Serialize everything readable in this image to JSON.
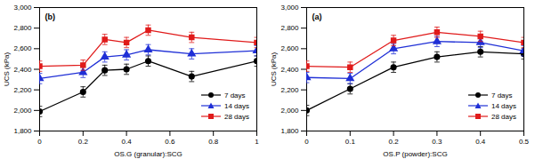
{
  "chart_data": [
    {
      "type": "line",
      "title": "(b)",
      "x_label": "OS.G (granular):SCG",
      "y_label": "UCS (kPa)",
      "x": [
        0,
        0.2,
        0.3,
        0.4,
        0.5,
        0.7,
        1
      ],
      "series": [
        {
          "name": "7 days",
          "color": "#000000",
          "marker": "circle",
          "line_style": "solid",
          "values": [
            1990,
            2180,
            2390,
            2400,
            2480,
            2330,
            2480
          ],
          "errors": [
            50,
            50,
            50,
            50,
            50,
            50,
            50
          ]
        },
        {
          "name": "14 days",
          "color": "#1f2fd6",
          "marker": "triangle",
          "line_style": "solid",
          "values": [
            2310,
            2370,
            2520,
            2540,
            2590,
            2550,
            2580
          ],
          "errors": [
            50,
            50,
            50,
            50,
            50,
            50,
            50
          ]
        },
        {
          "name": "28 days",
          "color": "#e01b1b",
          "marker": "square",
          "line_style": "solid",
          "values": [
            2430,
            2440,
            2690,
            2660,
            2780,
            2710,
            2660
          ],
          "errors": [
            50,
            50,
            50,
            50,
            50,
            50,
            50
          ]
        }
      ],
      "xlim": [
        0,
        1
      ],
      "xticks": [
        0,
        0.2,
        0.4,
        0.6,
        0.8,
        1
      ],
      "ylim": [
        1800,
        3000
      ],
      "yticks": [
        {
          "value": 1800,
          "label": "1,800"
        },
        {
          "value": 2000,
          "label": "2,000"
        },
        {
          "value": 2200,
          "label": "2,200"
        },
        {
          "value": 2400,
          "label": "2,400"
        },
        {
          "value": 2600,
          "label": "2,600"
        },
        {
          "value": 2800,
          "label": "2,800"
        },
        {
          "value": 3000,
          "label": "3,000"
        }
      ],
      "grid": false,
      "legend": "lower right"
    },
    {
      "type": "line",
      "title": "(a)",
      "x_label": "OS.P (powder):SCG",
      "y_label": "UCS (kPa)",
      "x": [
        0,
        0.1,
        0.2,
        0.3,
        0.4,
        0.5
      ],
      "series": [
        {
          "name": "7 days",
          "color": "#000000",
          "marker": "circle",
          "line_style": "solid",
          "values": [
            2000,
            2210,
            2420,
            2520,
            2570,
            2550
          ],
          "errors": [
            50,
            50,
            50,
            50,
            50,
            50
          ]
        },
        {
          "name": "14 days",
          "color": "#1f2fd6",
          "marker": "triangle",
          "line_style": "solid",
          "values": [
            2320,
            2310,
            2600,
            2670,
            2660,
            2580
          ],
          "errors": [
            50,
            50,
            50,
            50,
            50,
            50
          ]
        },
        {
          "name": "28 days",
          "color": "#e01b1b",
          "marker": "square",
          "line_style": "solid",
          "values": [
            2430,
            2420,
            2680,
            2760,
            2720,
            2660
          ],
          "errors": [
            50,
            50,
            50,
            50,
            50,
            50
          ]
        }
      ],
      "xlim": [
        0,
        0.5
      ],
      "xticks": [
        0,
        0.1,
        0.2,
        0.3,
        0.4,
        0.5
      ],
      "ylim": [
        1800,
        3000
      ],
      "yticks": [
        {
          "value": 1800,
          "label": "1,800"
        },
        {
          "value": 2000,
          "label": "2,000"
        },
        {
          "value": 2200,
          "label": "2,200"
        },
        {
          "value": 2400,
          "label": "2,400"
        },
        {
          "value": 2600,
          "label": "2,600"
        },
        {
          "value": 2800,
          "label": "2,800"
        },
        {
          "value": 3000,
          "label": "3,000"
        }
      ],
      "grid": false,
      "legend": "lower right"
    }
  ]
}
